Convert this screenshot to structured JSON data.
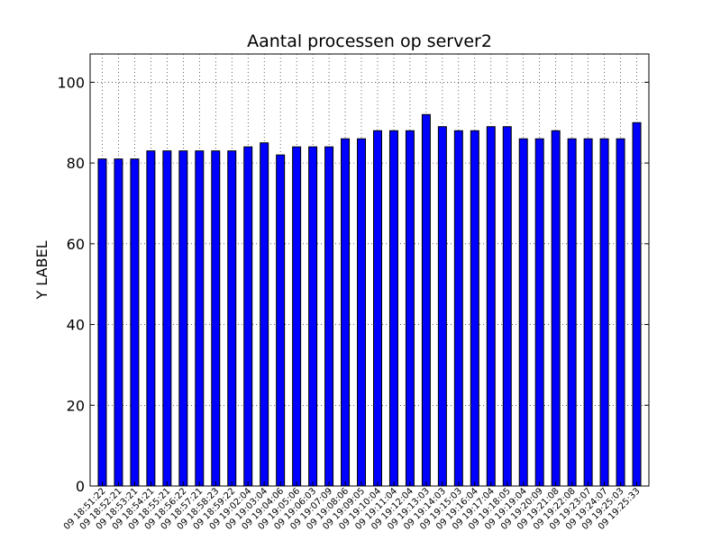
{
  "chart_data": {
    "type": "bar",
    "title": "Aantal processen op server2",
    "xlabel": "",
    "ylabel": "Y LABEL",
    "ylim": [
      0,
      107
    ],
    "yticks": [
      0,
      20,
      40,
      60,
      80,
      100
    ],
    "grid": true,
    "bar_color": "#0000ff",
    "categories": [
      "09 18:51:22",
      "09 18:52:21",
      "09 18:53:21",
      "09 18:54:21",
      "09 18:55:21",
      "09 18:56:22",
      "09 18:57:21",
      "09 18:58:23",
      "09 18:59:22",
      "09 19:02:04",
      "09 19:03:04",
      "09 19:04:06",
      "09 19:05:06",
      "09 19:06:03",
      "09 19:07:09",
      "09 19:08:06",
      "09 19:09:05",
      "09 19:10:04",
      "09 19:11:04",
      "09 19:12:04",
      "09 19:13:03",
      "09 19:14:03",
      "09 19:15:03",
      "09 19:16:04",
      "09 19:17:04",
      "09 19:18:05",
      "09 19:19:04",
      "09 19:20:09",
      "09 19:21:08",
      "09 19:22:08",
      "09 19:23:07",
      "09 19:24:07",
      "09 19:25:03",
      "09 19:25:33"
    ],
    "values": [
      81,
      81,
      81,
      83,
      83,
      83,
      83,
      83,
      83,
      84,
      85,
      82,
      84,
      84,
      84,
      86,
      86,
      88,
      88,
      88,
      92,
      89,
      88,
      88,
      89,
      89,
      86,
      86,
      88,
      86,
      86,
      86,
      86,
      90
    ]
  }
}
